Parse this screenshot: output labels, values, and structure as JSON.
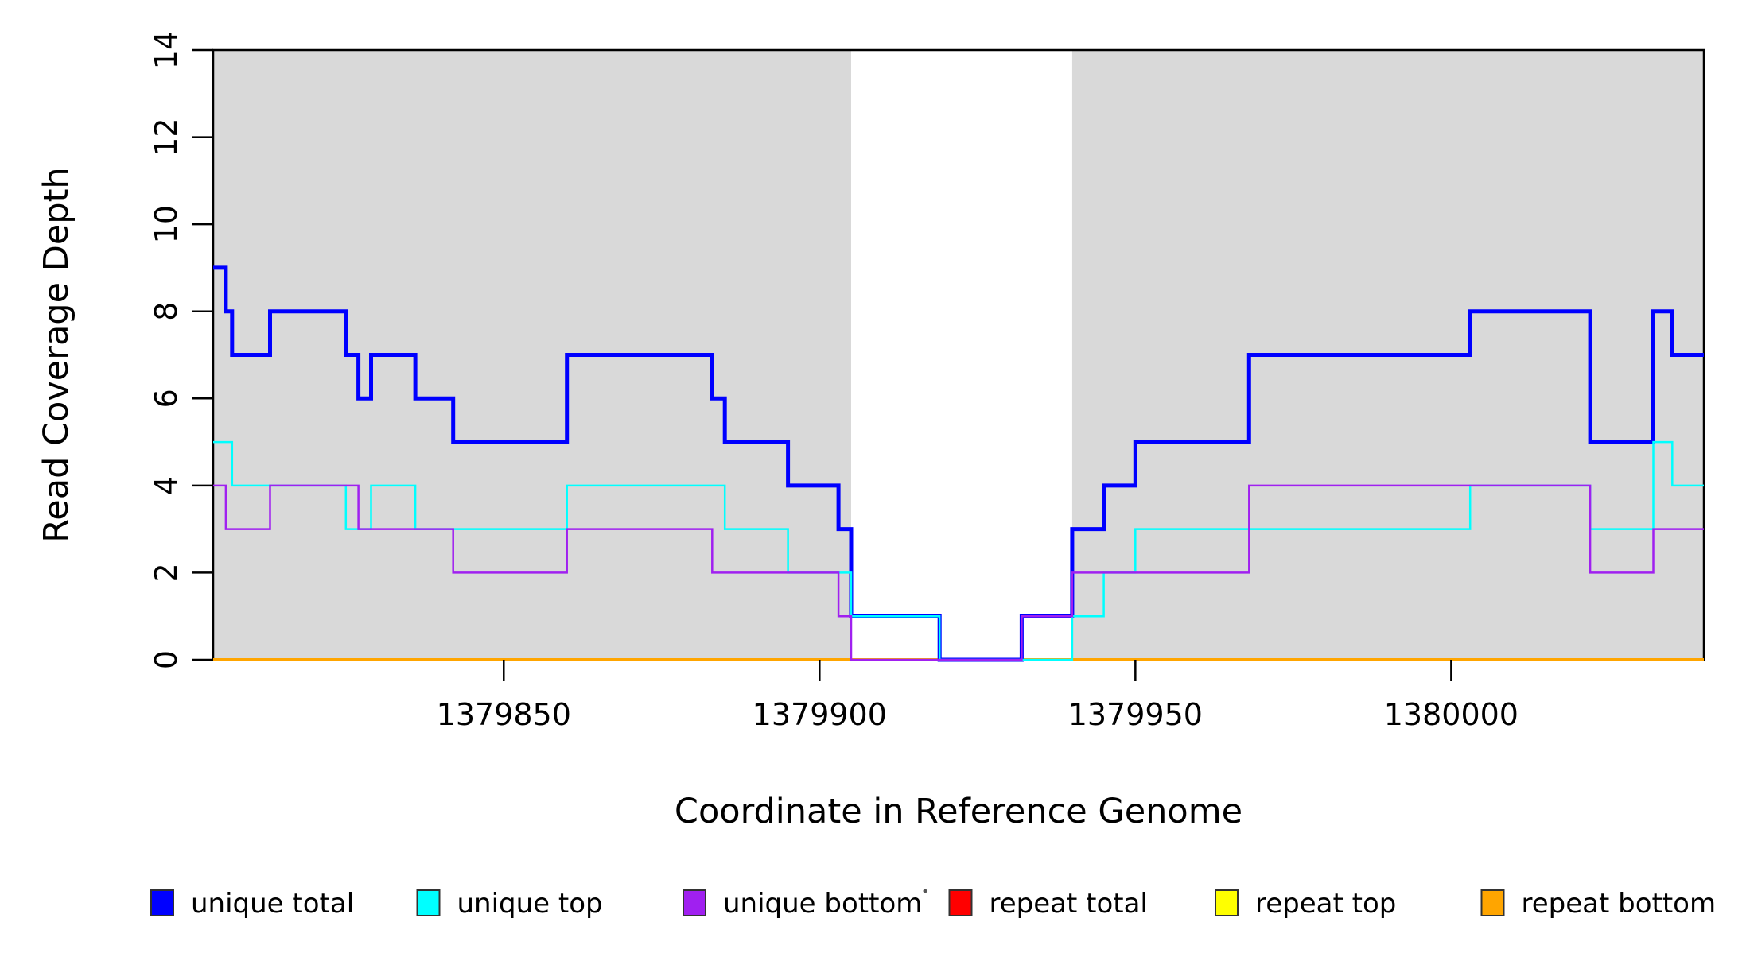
{
  "figure": {
    "background": "#ffffff",
    "plot_bg_highlight": "#D9D9D9",
    "box_color": "#000000"
  },
  "chart_data": {
    "type": "line",
    "subtype": "step-coverage-plot",
    "title": "",
    "xlabel": "Coordinate in Reference Genome",
    "ylabel": "Read Coverage Depth",
    "xlim": [
      1379804,
      1380040
    ],
    "ylim": [
      0,
      14
    ],
    "grid": false,
    "x_ticks": [
      {
        "value": 1379850,
        "label": "1379850"
      },
      {
        "value": 1379900,
        "label": "1379900"
      },
      {
        "value": 1379950,
        "label": "1379950"
      },
      {
        "value": 1380000,
        "label": "1380000"
      }
    ],
    "y_ticks": [
      {
        "value": 0,
        "label": "0"
      },
      {
        "value": 2,
        "label": "2"
      },
      {
        "value": 4,
        "label": "4"
      },
      {
        "value": 6,
        "label": "6"
      },
      {
        "value": 8,
        "label": "8"
      },
      {
        "value": 10,
        "label": "10"
      },
      {
        "value": 12,
        "label": "12"
      },
      {
        "value": 14,
        "label": "14"
      }
    ],
    "shaded_regions": [
      {
        "x0": 1379804,
        "x1": 1379905,
        "color": "#D9D9D9"
      },
      {
        "x0": 1379940,
        "x1": 1380040,
        "color": "#D9D9D9"
      }
    ],
    "series": [
      {
        "name": "repeat total",
        "color": "#FF0000",
        "width": 2.5,
        "steps": [
          [
            1379804,
            0
          ]
        ]
      },
      {
        "name": "repeat top",
        "color": "#FFFF00",
        "width": 2.5,
        "steps": [
          [
            1379804,
            0
          ]
        ]
      },
      {
        "name": "repeat bottom",
        "color": "#FFA500",
        "width": 4,
        "steps": [
          [
            1379804,
            0
          ]
        ]
      },
      {
        "name": "unique total",
        "color": "#0000FF",
        "width": 5,
        "steps": [
          [
            1379804,
            9
          ],
          [
            1379806,
            8
          ],
          [
            1379807,
            7
          ],
          [
            1379813,
            8
          ],
          [
            1379825,
            7
          ],
          [
            1379827,
            6
          ],
          [
            1379829,
            7
          ],
          [
            1379836,
            6
          ],
          [
            1379842,
            5
          ],
          [
            1379860,
            7
          ],
          [
            1379883,
            6
          ],
          [
            1379885,
            5
          ],
          [
            1379895,
            4
          ],
          [
            1379903,
            3
          ],
          [
            1379905,
            1
          ],
          [
            1379919,
            0
          ],
          [
            1379932,
            1
          ],
          [
            1379940,
            3
          ],
          [
            1379945,
            4
          ],
          [
            1379950,
            5
          ],
          [
            1379968,
            7
          ],
          [
            1380003,
            8
          ],
          [
            1380022,
            5
          ],
          [
            1380032,
            8
          ],
          [
            1380035,
            7
          ]
        ]
      },
      {
        "name": "unique top",
        "color": "#00FFFF",
        "width": 2.5,
        "steps": [
          [
            1379804,
            5
          ],
          [
            1379807,
            4
          ],
          [
            1379825,
            3
          ],
          [
            1379829,
            4
          ],
          [
            1379836,
            3
          ],
          [
            1379860,
            4
          ],
          [
            1379885,
            3
          ],
          [
            1379895,
            2
          ],
          [
            1379905,
            1
          ],
          [
            1379919,
            0
          ],
          [
            1379940,
            1
          ],
          [
            1379945,
            2
          ],
          [
            1379950,
            3
          ],
          [
            1380003,
            4
          ],
          [
            1380022,
            3
          ],
          [
            1380032,
            5
          ],
          [
            1380035,
            4
          ]
        ]
      },
      {
        "name": "unique bottom",
        "color": "#A020F0",
        "width": 2.5,
        "steps": [
          [
            1379804,
            4
          ],
          [
            1379806,
            3
          ],
          [
            1379813,
            4
          ],
          [
            1379827,
            3
          ],
          [
            1379842,
            2
          ],
          [
            1379860,
            3
          ],
          [
            1379883,
            2
          ],
          [
            1379903,
            1
          ],
          [
            1379905,
            0
          ],
          [
            1379932,
            1
          ],
          [
            1379940,
            2
          ],
          [
            1379968,
            4
          ],
          [
            1380022,
            2
          ],
          [
            1380032,
            3
          ]
        ]
      }
    ],
    "legend": {
      "position": "bottom",
      "entries": [
        {
          "label": "unique total",
          "color": "#0000FF"
        },
        {
          "label": "unique top",
          "color": "#00FFFF"
        },
        {
          "label": "unique bottom",
          "color": "#A020F0"
        },
        {
          "label": "repeat total",
          "color": "#FF0000"
        },
        {
          "label": "repeat top",
          "color": "#FFFF00"
        },
        {
          "label": "repeat bottom",
          "color": "#FFA500"
        }
      ]
    }
  }
}
